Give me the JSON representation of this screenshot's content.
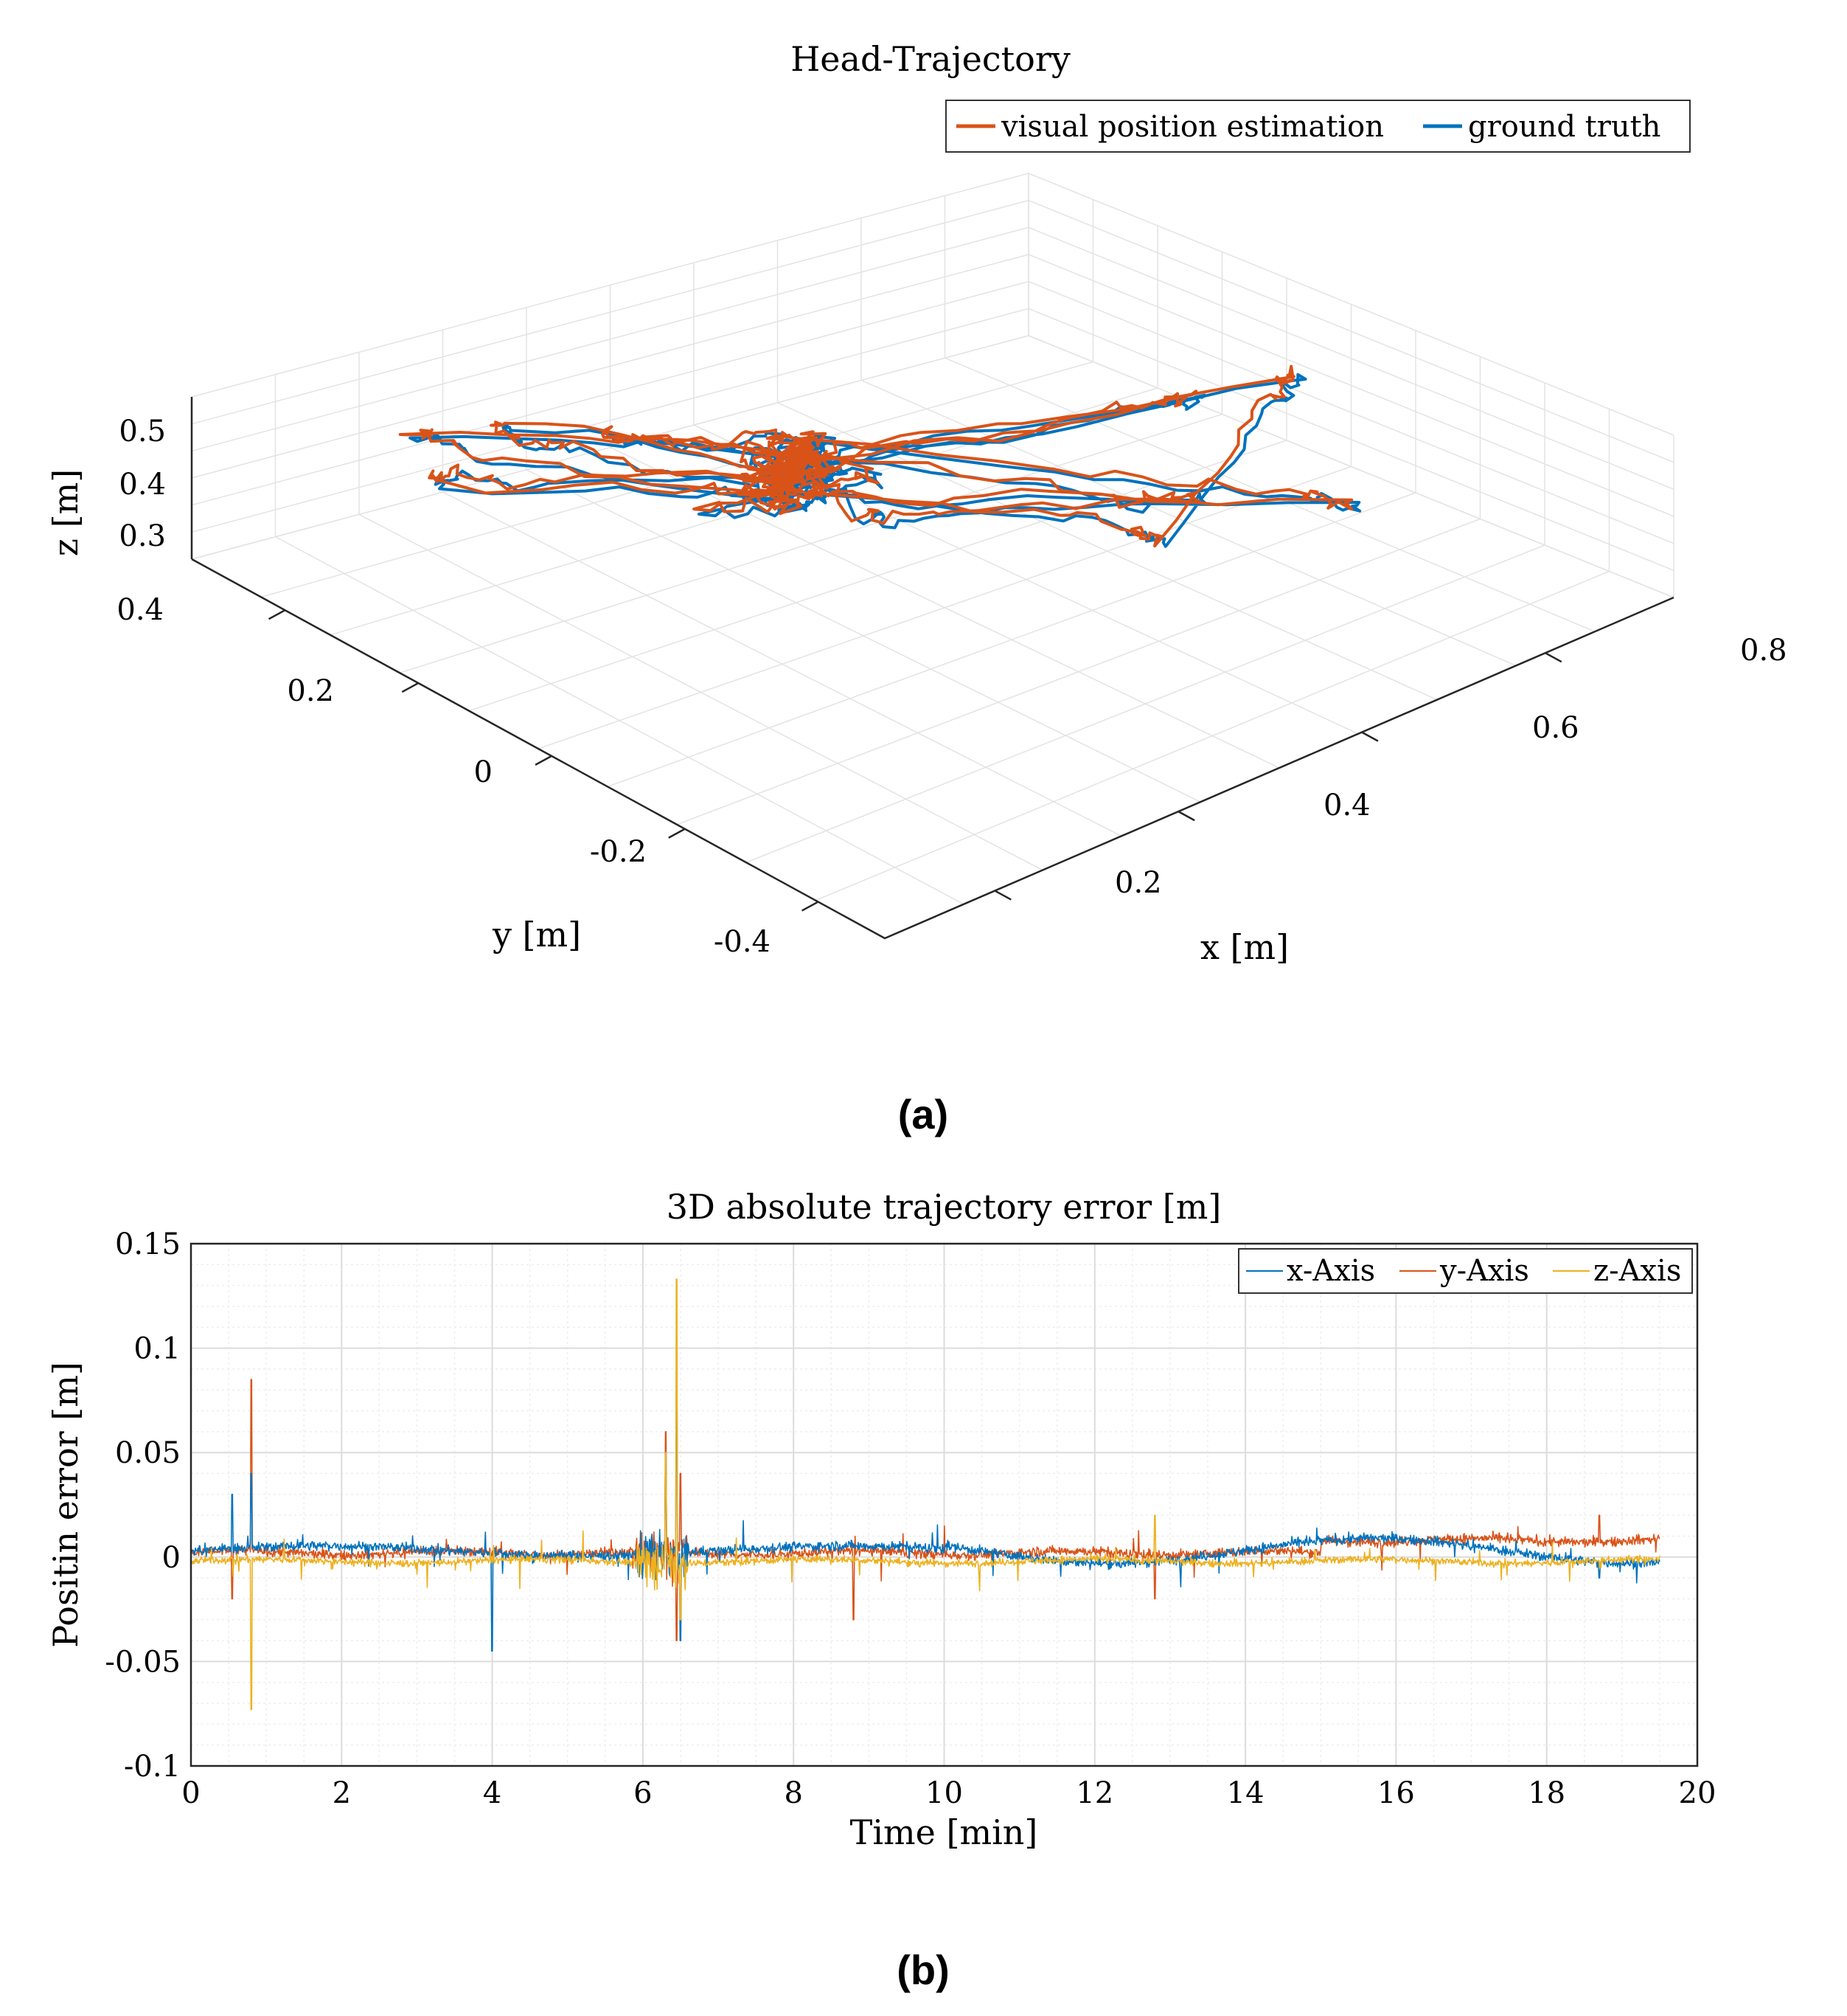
{
  "figure_a": {
    "caption": "(a)",
    "chart_data": {
      "type": "line",
      "title": "Head-Trajectory",
      "xlabel": "x [m]",
      "ylabel": "y [m]",
      "zlabel": "z [m]",
      "x_ticks": [
        "0.2",
        "0.4",
        "0.6",
        "0.8"
      ],
      "y_ticks": [
        "-0.4",
        "-0.2",
        "0",
        "0.2",
        "0.4"
      ],
      "z_ticks": [
        "0.3",
        "0.4",
        "0.5"
      ],
      "xlim": [
        0.1,
        0.85
      ],
      "ylim": [
        -0.5,
        0.45
      ],
      "zlim": [
        0.28,
        0.55
      ],
      "grid": true,
      "legend": "top-right",
      "series": [
        {
          "name": "visual position estimation",
          "color": "#D95319"
        },
        {
          "name": "ground truth",
          "color": "#0072BD"
        }
      ]
    }
  },
  "figure_b": {
    "caption": "(b)",
    "chart_data": {
      "type": "line",
      "title": "3D absolute trajectory error [m]",
      "xlabel": "Time [min]",
      "ylabel": "Positin error [m]",
      "xlim": [
        0,
        20
      ],
      "ylim": [
        -0.1,
        0.15
      ],
      "x_ticks": [
        "0",
        "2",
        "4",
        "6",
        "8",
        "10",
        "12",
        "14",
        "16",
        "18",
        "20"
      ],
      "y_ticks": [
        "-0.1",
        "-0.05",
        "0",
        "0.05",
        "0.1",
        "0.15"
      ],
      "grid": true,
      "legend": "top-right",
      "series": [
        {
          "name": "x-Axis",
          "color": "#0072BD"
        },
        {
          "name": "y-Axis",
          "color": "#D95319"
        },
        {
          "name": "z-Axis",
          "color": "#EDB120"
        }
      ]
    }
  }
}
